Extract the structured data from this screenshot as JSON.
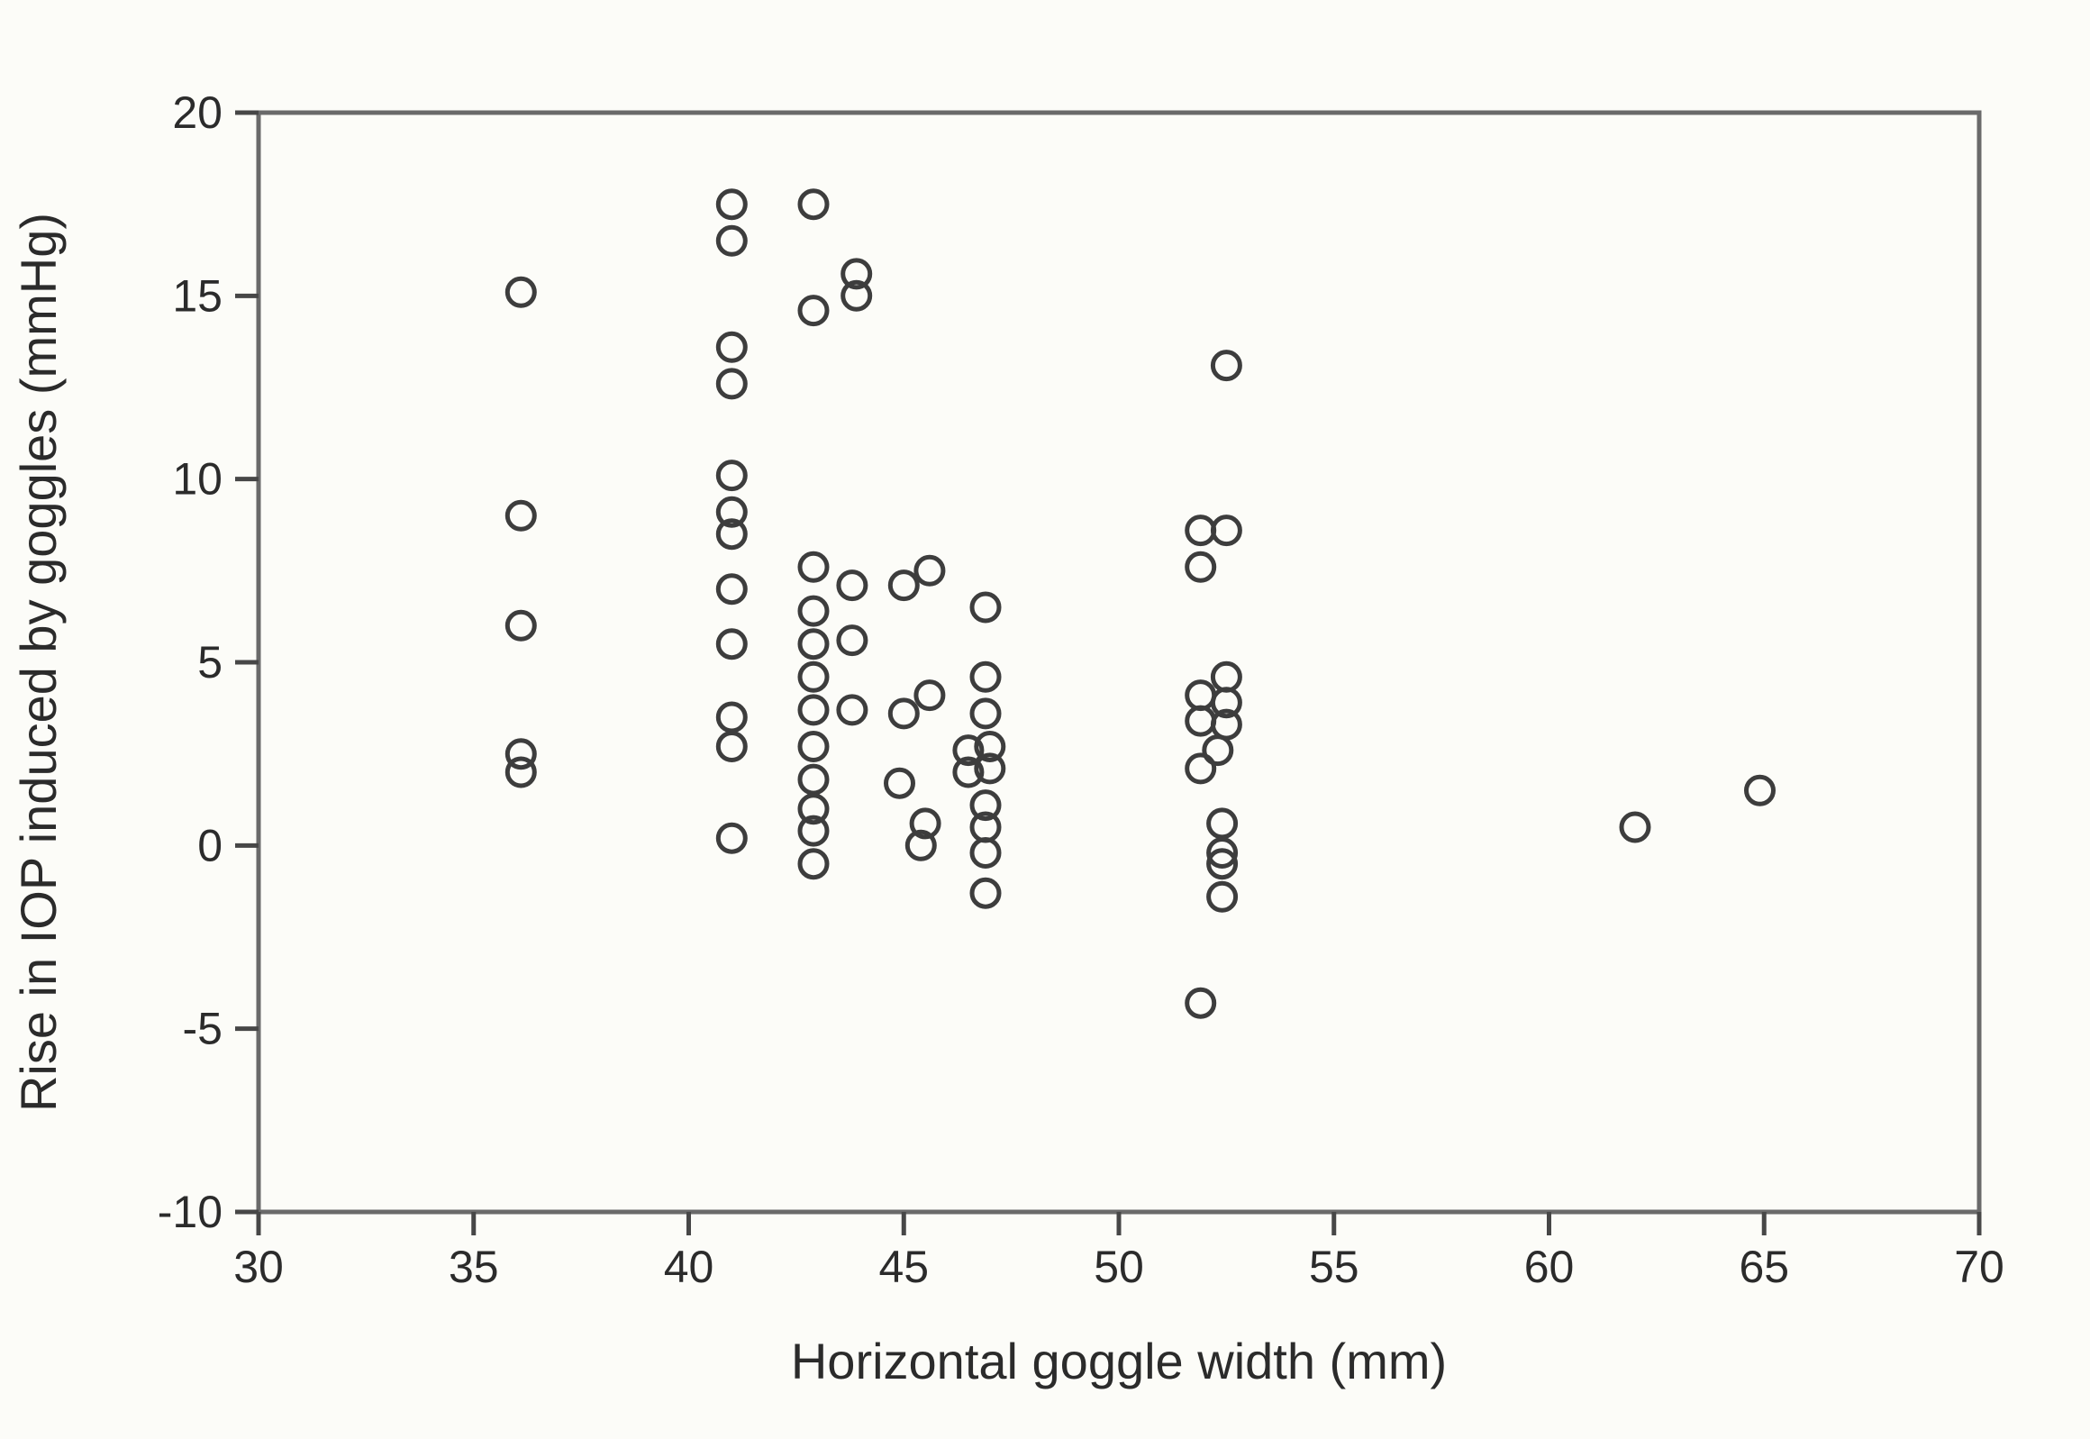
{
  "figure": {
    "background_color": "#fcfcf8",
    "frame_color": "#6a6a6a",
    "tick_color": "#474747",
    "text_color": "#2b2b2b",
    "marker_color": "#3d3d3d"
  },
  "chart_data": {
    "type": "scatter",
    "title": "",
    "xlabel": "Horizontal goggle width (mm)",
    "ylabel": "Rise in IOP induced by goggles (mmHg)",
    "xlim": [
      30,
      70
    ],
    "ylim": [
      -10,
      20
    ],
    "x_ticks": [
      30,
      35,
      40,
      45,
      50,
      55,
      60,
      65,
      70
    ],
    "y_ticks": [
      -10,
      -5,
      0,
      5,
      10,
      15,
      20
    ],
    "grid": false,
    "legend": null,
    "marker": "open-circle",
    "points": [
      [
        36.1,
        15.1
      ],
      [
        36.1,
        9.0
      ],
      [
        36.1,
        6.0
      ],
      [
        36.1,
        2.5
      ],
      [
        36.1,
        2.0
      ],
      [
        41.0,
        17.5
      ],
      [
        41.0,
        16.5
      ],
      [
        41.0,
        13.6
      ],
      [
        41.0,
        12.6
      ],
      [
        41.0,
        10.1
      ],
      [
        41.0,
        9.1
      ],
      [
        41.0,
        8.5
      ],
      [
        41.0,
        7.0
      ],
      [
        41.0,
        5.5
      ],
      [
        41.0,
        3.5
      ],
      [
        41.0,
        2.7
      ],
      [
        41.0,
        0.2
      ],
      [
        42.9,
        17.5
      ],
      [
        42.9,
        14.6
      ],
      [
        42.9,
        7.6
      ],
      [
        42.9,
        6.4
      ],
      [
        42.9,
        5.5
      ],
      [
        42.9,
        4.6
      ],
      [
        42.9,
        3.7
      ],
      [
        42.9,
        2.7
      ],
      [
        42.9,
        1.8
      ],
      [
        42.9,
        1.0
      ],
      [
        42.9,
        0.4
      ],
      [
        42.9,
        -0.5
      ],
      [
        43.9,
        15.6
      ],
      [
        43.9,
        15.0
      ],
      [
        43.8,
        7.1
      ],
      [
        43.8,
        5.6
      ],
      [
        43.8,
        3.7
      ],
      [
        45.0,
        7.1
      ],
      [
        45.6,
        7.5
      ],
      [
        45.6,
        4.1
      ],
      [
        45.0,
        3.6
      ],
      [
        44.9,
        1.7
      ],
      [
        45.5,
        0.6
      ],
      [
        45.4,
        0.0
      ],
      [
        46.9,
        6.5
      ],
      [
        46.9,
        4.6
      ],
      [
        46.9,
        3.6
      ],
      [
        46.5,
        2.6
      ],
      [
        47.0,
        2.7
      ],
      [
        46.5,
        2.0
      ],
      [
        47.0,
        2.1
      ],
      [
        46.9,
        1.1
      ],
      [
        46.9,
        0.5
      ],
      [
        46.9,
        -0.2
      ],
      [
        46.9,
        -1.3
      ],
      [
        52.5,
        13.1
      ],
      [
        51.9,
        8.6
      ],
      [
        52.5,
        8.6
      ],
      [
        51.9,
        7.6
      ],
      [
        52.5,
        4.6
      ],
      [
        51.9,
        4.1
      ],
      [
        52.5,
        3.9
      ],
      [
        51.9,
        3.4
      ],
      [
        52.5,
        3.3
      ],
      [
        52.3,
        2.6
      ],
      [
        51.9,
        2.1
      ],
      [
        52.4,
        0.6
      ],
      [
        52.4,
        -0.2
      ],
      [
        52.4,
        -0.5
      ],
      [
        52.4,
        -1.4
      ],
      [
        51.9,
        -4.3
      ],
      [
        62.0,
        0.5
      ],
      [
        64.9,
        1.5
      ]
    ]
  }
}
